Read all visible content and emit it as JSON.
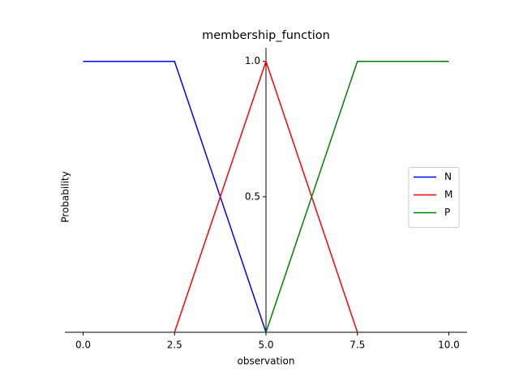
{
  "chart_data": {
    "type": "line",
    "title": "membership_function",
    "x_label": "observation",
    "y_label": "Probability",
    "x": [
      0,
      2.5,
      5,
      7.5,
      10
    ],
    "series": [
      {
        "name": "N",
        "color": "#0000ff",
        "values": [
          1,
          1,
          0,
          null,
          null
        ]
      },
      {
        "name": "M",
        "color": "#ff0000",
        "values": [
          null,
          0,
          1,
          0,
          null
        ]
      },
      {
        "name": "P",
        "color": "#008000",
        "values": [
          null,
          null,
          0,
          1,
          1
        ]
      }
    ],
    "xlim": [
      -0.5,
      10.5
    ],
    "ylim": [
      0,
      1.05
    ],
    "xticks": [
      {
        "value": 0,
        "label": "0.0"
      },
      2.5,
      {
        "value": 5,
        "label": "5.0"
      },
      7.5,
      {
        "value": 10,
        "label": "10.0"
      }
    ],
    "yticks": [
      0.5,
      {
        "value": 1,
        "label": "1.0"
      }
    ],
    "y_axis_at": 5,
    "legend": "center right",
    "grid": false
  }
}
